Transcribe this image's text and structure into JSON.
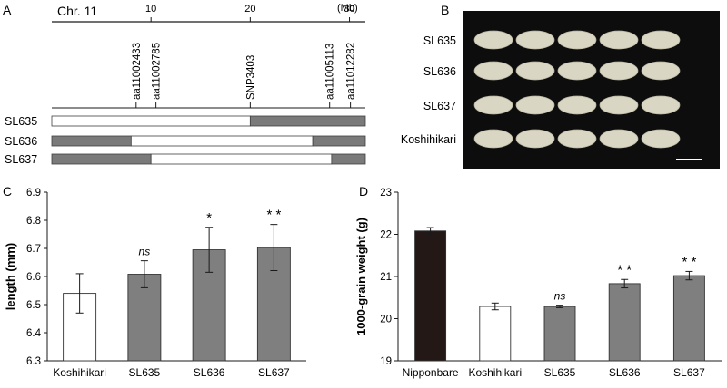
{
  "figure": {
    "panel_labels": [
      "A",
      "B",
      "C",
      "D"
    ]
  },
  "panel_a": {
    "chromosome_label": "Chr. 11",
    "axis_ticks": [
      10,
      20,
      30
    ],
    "axis_unit": "(Mb)",
    "axis_range_mb": [
      0,
      31.6
    ],
    "markers": [
      {
        "name": "aa11002433",
        "pos_mb": 8.5
      },
      {
        "name": "aa11002785",
        "pos_mb": 10.5
      },
      {
        "name": "SNP3403",
        "pos_mb": 20.0
      },
      {
        "name": "aa11005113",
        "pos_mb": 28.0
      },
      {
        "name": "aa11012282",
        "pos_mb": 30.1
      }
    ],
    "lines": [
      {
        "name": "SL635",
        "segments": [
          {
            "start": 0,
            "end": 20.0,
            "genotype": "Nipponbare"
          },
          {
            "start": 20.0,
            "end": 31.6,
            "genotype": "Koshihikari"
          }
        ]
      },
      {
        "name": "SL636",
        "segments": [
          {
            "start": 0,
            "end": 8.0,
            "genotype": "Koshihikari"
          },
          {
            "start": 8.0,
            "end": 26.3,
            "genotype": "Nipponbare"
          },
          {
            "start": 26.3,
            "end": 31.6,
            "genotype": "Koshihikari"
          }
        ]
      },
      {
        "name": "SL637",
        "segments": [
          {
            "start": 0,
            "end": 10.0,
            "genotype": "Koshihikari"
          },
          {
            "start": 10.0,
            "end": 28.2,
            "genotype": "Nipponbare"
          },
          {
            "start": 28.2,
            "end": 31.6,
            "genotype": "Koshihikari"
          }
        ]
      }
    ],
    "colors": {
      "Nipponbare": "#ffffff",
      "Koshihikari": "#7a7a7a"
    }
  },
  "panel_b": {
    "background": "#0d0d0d",
    "grain_color": "#d9d6c3",
    "rows": [
      {
        "label": "SL635",
        "grains": 5
      },
      {
        "label": "SL636",
        "grains": 5
      },
      {
        "label": "SL637",
        "grains": 5
      },
      {
        "label": "Koshihikari",
        "grains": 5
      }
    ]
  },
  "chart_data": [
    {
      "type": "bar",
      "panel": "C",
      "title": "",
      "ylabel": "length (mm)",
      "xlabel": "",
      "categories": [
        "Koshihikari",
        "SL635",
        "SL636",
        "SL637"
      ],
      "values": [
        6.54,
        6.608,
        6.695,
        6.703
      ],
      "errors": [
        0.07,
        0.048,
        0.08,
        0.082
      ],
      "significance": [
        "",
        "ns",
        "*",
        "* *"
      ],
      "bar_colors": [
        "#ffffff",
        "#7f7f7f",
        "#7f7f7f",
        "#7f7f7f"
      ],
      "ylim": [
        6.3,
        6.9
      ],
      "yticks": [
        6.3,
        6.4,
        6.5,
        6.6,
        6.7,
        6.8,
        6.9
      ],
      "grid": false
    },
    {
      "type": "bar",
      "panel": "D",
      "title": "",
      "ylabel": "1000-grain weight (g)",
      "xlabel": "",
      "categories": [
        "Nipponbare",
        "Koshihikari",
        "SL635",
        "SL636",
        "SL637"
      ],
      "values": [
        22.08,
        20.29,
        20.29,
        20.83,
        21.02
      ],
      "errors": [
        0.08,
        0.08,
        0.03,
        0.1,
        0.1
      ],
      "significance": [
        "",
        "",
        "ns",
        "* *",
        "* *"
      ],
      "bar_colors": [
        "#231815",
        "#ffffff",
        "#7f7f7f",
        "#7f7f7f",
        "#7f7f7f"
      ],
      "ylim": [
        19,
        23
      ],
      "yticks": [
        19,
        20,
        21,
        22,
        23
      ],
      "grid": false
    }
  ]
}
